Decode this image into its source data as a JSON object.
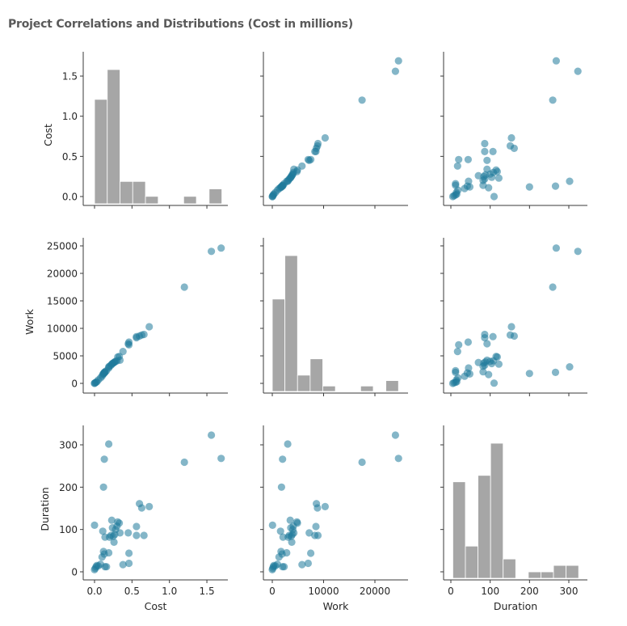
{
  "title": "Project Correlations and Distributions (Cost in millions)",
  "chart_data": {
    "type": "pairplot",
    "title": "Project Correlations and Distributions (Cost in millions)",
    "variables": [
      "Cost",
      "Work",
      "Duration"
    ],
    "point_color": "#1f7a9a",
    "point_alpha": 0.55,
    "hist_color": "#a6a6a6",
    "axes": {
      "Cost": {
        "ticks": [
          0.0,
          0.5,
          1.0,
          1.5
        ],
        "tick_labels": [
          "0.0",
          "0.5",
          "1.0",
          "1.5"
        ],
        "range": [
          -0.12,
          1.78
        ]
      },
      "Work": {
        "ticks": [
          0,
          5000,
          10000,
          15000,
          20000,
          25000
        ],
        "tick_labels": [
          "0",
          "5000",
          "10000",
          "15000",
          "20000",
          "25000"
        ],
        "x_ticks": [
          0,
          10000,
          20000
        ],
        "x_tick_labels": [
          "0",
          "10000",
          "20000"
        ],
        "range": [
          -1600,
          26500
        ]
      },
      "Duration": {
        "ticks": [
          0,
          100,
          200,
          300
        ],
        "tick_labels": [
          "0",
          "100",
          "200",
          "300"
        ],
        "range": [
          -20,
          345
        ]
      }
    },
    "histograms": {
      "Cost": {
        "bin_edges": [
          0.0,
          0.17,
          0.34,
          0.51,
          0.68,
          0.85,
          1.02,
          1.19,
          1.36,
          1.53,
          1.7
        ],
        "counts": [
          14,
          18,
          3,
          3,
          1,
          0,
          0,
          1,
          0,
          2
        ]
      },
      "Work": {
        "bin_edges": [
          0,
          2460,
          4920,
          7380,
          9840,
          12300,
          14760,
          17220,
          19680,
          22140,
          24600
        ],
        "counts": [
          17,
          25,
          3,
          6,
          1,
          0,
          0,
          1,
          0,
          2
        ]
      },
      "Duration": {
        "bin_edges": [
          5,
          37,
          69,
          101,
          133,
          165,
          197,
          229,
          261,
          293,
          325
        ],
        "counts": [
          15,
          5,
          16,
          21,
          3,
          0,
          1,
          1,
          2,
          2
        ]
      }
    },
    "points": [
      {
        "cost": 0.0,
        "work": 0,
        "duration": 5
      },
      {
        "cost": 0.01,
        "work": 100,
        "duration": 8
      },
      {
        "cost": 0.02,
        "work": 200,
        "duration": 12
      },
      {
        "cost": 0.0,
        "work": 50,
        "duration": 110
      },
      {
        "cost": 0.03,
        "work": 300,
        "duration": 15
      },
      {
        "cost": 0.05,
        "work": 600,
        "duration": 14
      },
      {
        "cost": 0.08,
        "work": 1000,
        "duration": 18
      },
      {
        "cost": 0.1,
        "work": 1300,
        "duration": 35
      },
      {
        "cost": 0.12,
        "work": 1700,
        "duration": 48
      },
      {
        "cost": 0.13,
        "work": 1900,
        "duration": 42
      },
      {
        "cost": 0.11,
        "work": 1600,
        "duration": 96
      },
      {
        "cost": 0.14,
        "work": 2100,
        "duration": 82
      },
      {
        "cost": 0.14,
        "work": 2000,
        "duration": 12
      },
      {
        "cost": 0.16,
        "work": 2300,
        "duration": 12
      },
      {
        "cost": 0.12,
        "work": 1800,
        "duration": 200
      },
      {
        "cost": 0.13,
        "work": 2000,
        "duration": 266
      },
      {
        "cost": 0.19,
        "work": 3000,
        "duration": 302
      },
      {
        "cost": 0.19,
        "work": 2800,
        "duration": 45
      },
      {
        "cost": 0.2,
        "work": 3100,
        "duration": 82
      },
      {
        "cost": 0.22,
        "work": 3300,
        "duration": 86
      },
      {
        "cost": 0.23,
        "work": 3500,
        "duration": 122
      },
      {
        "cost": 0.24,
        "work": 3600,
        "duration": 104
      },
      {
        "cost": 0.25,
        "work": 3700,
        "duration": 84
      },
      {
        "cost": 0.26,
        "work": 3800,
        "duration": 70
      },
      {
        "cost": 0.27,
        "work": 3900,
        "duration": 88
      },
      {
        "cost": 0.28,
        "work": 4000,
        "duration": 100
      },
      {
        "cost": 0.3,
        "work": 4100,
        "duration": 108
      },
      {
        "cost": 0.31,
        "work": 4800,
        "duration": 118
      },
      {
        "cost": 0.33,
        "work": 4900,
        "duration": 115
      },
      {
        "cost": 0.34,
        "work": 4200,
        "duration": 92
      },
      {
        "cost": 0.38,
        "work": 5800,
        "duration": 17
      },
      {
        "cost": 0.45,
        "work": 7200,
        "duration": 92
      },
      {
        "cost": 0.46,
        "work": 7000,
        "duration": 20
      },
      {
        "cost": 0.46,
        "work": 7500,
        "duration": 44
      },
      {
        "cost": 0.56,
        "work": 8500,
        "duration": 107
      },
      {
        "cost": 0.56,
        "work": 8300,
        "duration": 86
      },
      {
        "cost": 0.6,
        "work": 8600,
        "duration": 161
      },
      {
        "cost": 0.63,
        "work": 8800,
        "duration": 151
      },
      {
        "cost": 0.66,
        "work": 8900,
        "duration": 86
      },
      {
        "cost": 0.73,
        "work": 10300,
        "duration": 154
      },
      {
        "cost": 1.2,
        "work": 17500,
        "duration": 259
      },
      {
        "cost": 1.56,
        "work": 24000,
        "duration": 323
      },
      {
        "cost": 1.69,
        "work": 24600,
        "duration": 268
      }
    ]
  }
}
